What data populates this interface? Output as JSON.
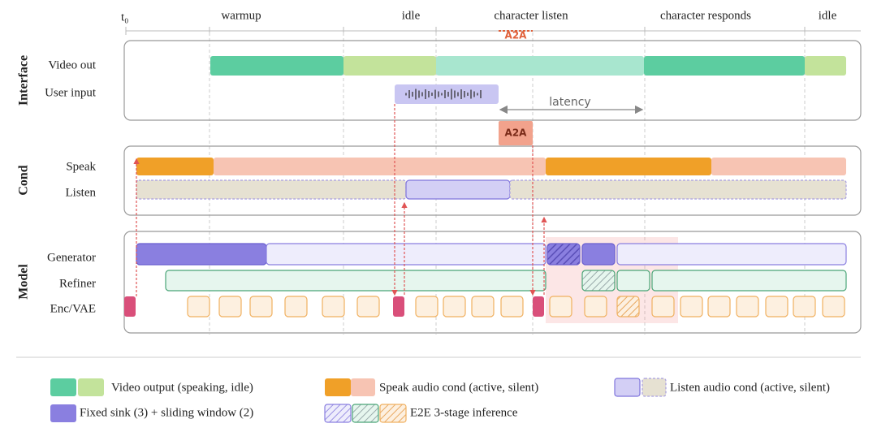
{
  "axis": {
    "origin": "t₀",
    "phases": [
      "warmup",
      "idle",
      "character listen",
      "character responds",
      "idle"
    ]
  },
  "annotations": {
    "a2a_marker": "A2A",
    "a2a_box": "A2A",
    "latency": "latency"
  },
  "groups": [
    {
      "label": "Interface",
      "rows": [
        "Video out",
        "User input"
      ]
    },
    {
      "label": "Cond",
      "rows": [
        "Speak",
        "Listen"
      ]
    },
    {
      "label": "Model",
      "rows": [
        "Generator",
        "Refiner",
        "Enc/VAE"
      ]
    }
  ],
  "legend": [
    "Video output (speaking, idle)",
    "Speak audio cond (active, silent)",
    "Listen audio cond (active, silent)",
    "Fixed sink (3) + sliding window (2)",
    "E2E 3-stage inference"
  ]
}
